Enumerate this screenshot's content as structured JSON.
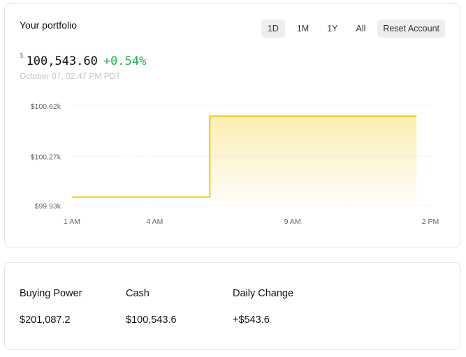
{
  "portfolio": {
    "title": "Your portfolio",
    "currency_symbol": "$",
    "value": "100,543.60",
    "change_pct": "+0.54%",
    "timestamp": "October 07, 02:47 PM PDT",
    "change_color": "#22b14c",
    "ranges": [
      "1D",
      "1M",
      "1Y",
      "All"
    ],
    "active_range": "1D",
    "reset_label": "Reset Account"
  },
  "chart_data": {
    "type": "area",
    "x_tick_labels": [
      "1 AM",
      "4 AM",
      "9 AM",
      "2 PM"
    ],
    "x_ticks": [
      1,
      4,
      9,
      14
    ],
    "y_tick_labels": [
      "$100.62k",
      "$100.27k",
      "$99.93k"
    ],
    "y_ticks": [
      100620,
      100270,
      99930
    ],
    "ylim": [
      99930,
      100620
    ],
    "xlim": [
      1,
      14
    ],
    "points": [
      {
        "x": 1,
        "y": 99990
      },
      {
        "x": 6,
        "y": 99990
      },
      {
        "x": 6,
        "y": 100550
      },
      {
        "x": 13.5,
        "y": 100550
      }
    ],
    "line_color": "#f2c80f",
    "grid": "horizontal dashed"
  },
  "stats": {
    "buying_power_label": "Buying Power",
    "buying_power_value": "$201,087.2",
    "cash_label": "Cash",
    "cash_value": "$100,543.6",
    "daily_change_label": "Daily Change",
    "daily_change_value": "+$543.6"
  }
}
